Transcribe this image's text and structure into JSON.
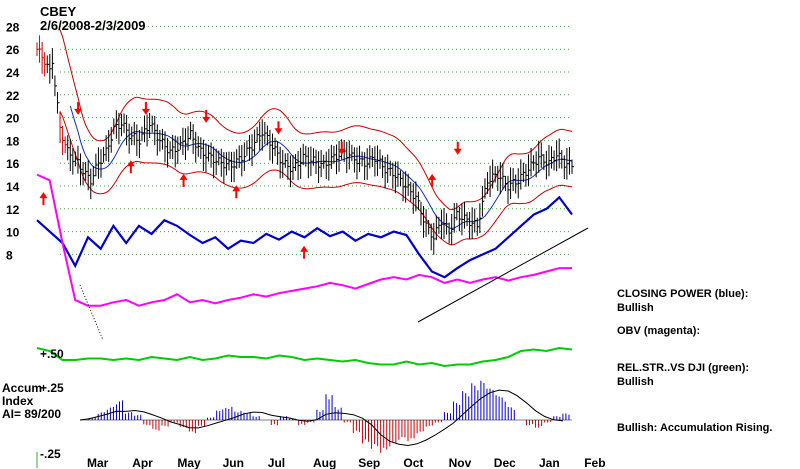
{
  "header": {
    "symbol": "CBEY",
    "date_range": "2/6/2008-2/3/2009"
  },
  "indicator_labels": {
    "plus50": "+.50",
    "plus25": "+.25",
    "minus25": "-.25",
    "accum_line1": "Accum",
    "accum_line2": "Index",
    "accum_line3": "AI= 89/200"
  },
  "notes": [
    {
      "id": "closing-power",
      "line1": "CLOSING POWER (blue):",
      "line2": "Bullish"
    },
    {
      "id": "obv",
      "line1": "OBV (magenta):",
      "line2": ""
    },
    {
      "id": "relstr",
      "line1": "REL.STR..VS DJI (green):",
      "line2": "Bullish"
    },
    {
      "id": "accumulation",
      "line1": "Bullish: Accumulation Rising.",
      "line2": ""
    }
  ],
  "colors": {
    "price": "#000000",
    "bands": "#cc0000",
    "ma": "#1030c0",
    "closing_power": "#0000cc",
    "obv": "#ff00ff",
    "relstr": "#00cc00",
    "accum_pos": "#0000cc",
    "accum_neg": "#cc0000",
    "grid": "#33aa33",
    "arrow": "#ff0000"
  },
  "chart_data": {
    "type": "line",
    "price_axis": {
      "min": 6,
      "max": 29,
      "ticks": [
        8,
        10,
        12,
        14,
        16,
        18,
        20,
        22,
        24,
        26,
        28
      ]
    },
    "x_labels": [
      "Mar",
      "Apr",
      "May",
      "Jun",
      "Jul",
      "Aug",
      "Sep",
      "Oct",
      "Nov",
      "Dec",
      "Jan",
      "Feb"
    ],
    "series": [
      {
        "name": "CLOSING POWER (blue)",
        "role": "closing_power",
        "values": [
          11.0,
          10.0,
          9.0,
          7.0,
          9.5,
          8.5,
          10.5,
          9.0,
          10.5,
          9.8,
          11.0,
          10.5,
          9.7,
          9.0,
          9.5,
          8.5,
          9.2,
          9.0,
          9.8,
          9.3,
          10.0,
          9.5,
          10.3,
          9.6,
          10.0,
          9.2,
          9.8,
          9.5,
          10.0,
          9.7,
          8.0,
          6.5,
          6.0,
          6.8,
          7.5,
          8.0,
          8.5,
          9.5,
          10.5,
          11.5,
          12.0,
          13.0,
          11.5
        ]
      },
      {
        "name": "OBV (magenta)",
        "role": "obv",
        "values": [
          15.0,
          14.5,
          9.0,
          4.0,
          3.5,
          3.5,
          3.8,
          4.0,
          3.5,
          3.8,
          4.0,
          4.5,
          3.8,
          4.0,
          3.7,
          4.0,
          4.2,
          4.5,
          4.3,
          4.6,
          4.8,
          5.0,
          5.2,
          5.5,
          5.3,
          5.0,
          5.4,
          5.8,
          6.0,
          5.8,
          6.2,
          6.0,
          5.5,
          5.8,
          5.5,
          5.8,
          6.0,
          5.7,
          6.0,
          6.2,
          6.5,
          6.8,
          6.8
        ]
      }
    ],
    "rel_strength_vs_dji": [
      38,
      36,
      30,
      30,
      31,
      31,
      30,
      31,
      30,
      32,
      31,
      30,
      32,
      30,
      31,
      33,
      32,
      32,
      31,
      33,
      32,
      30,
      31,
      30,
      29,
      30,
      28,
      27,
      27,
      29,
      27,
      28,
      26,
      27,
      27,
      29,
      30,
      32,
      36,
      37,
      36,
      38,
      37
    ],
    "accumulation_index": [
      0.0,
      0.02,
      0.06,
      0.1,
      0.15,
      0.06,
      0.04,
      -0.04,
      -0.08,
      -0.05,
      -0.02,
      -0.06,
      -0.1,
      -0.05,
      0.02,
      0.08,
      0.1,
      0.07,
      0.06,
      0.03,
      0.0,
      -0.04,
      0.03,
      0.01,
      -0.04,
      -0.02,
      0.08,
      0.2,
      0.1,
      -0.02,
      -0.1,
      -0.18,
      -0.22,
      -0.25,
      -0.2,
      -0.15,
      -0.16,
      -0.1,
      -0.05,
      -0.02,
      0.06,
      0.14,
      0.22,
      0.28,
      0.3,
      0.24,
      0.18,
      0.1,
      0.0,
      -0.04,
      -0.06,
      -0.02,
      0.03,
      0.05
    ],
    "arrows": {
      "sell": [
        [
          3.5,
          20.5
        ],
        [
          8.0,
          20.5
        ],
        [
          12.0,
          19.8
        ],
        [
          16.8,
          18.8
        ],
        [
          21.0,
          17.0
        ],
        [
          28.7,
          17.0
        ]
      ],
      "buy": [
        [
          1.2,
          13.2
        ],
        [
          7.0,
          16.0
        ],
        [
          10.5,
          14.8
        ],
        [
          14.0,
          13.8
        ],
        [
          18.5,
          8.5
        ],
        [
          27.0,
          14.8
        ]
      ]
    }
  }
}
